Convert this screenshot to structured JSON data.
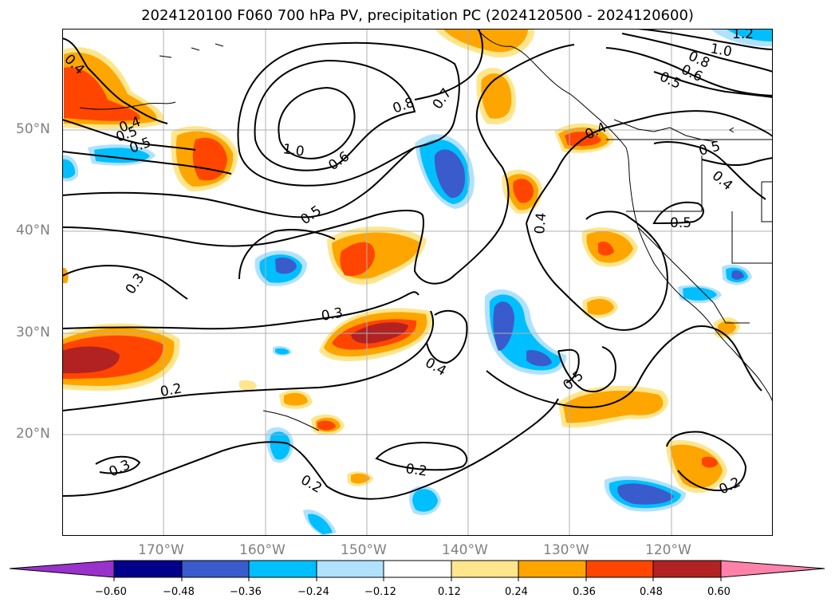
{
  "title": "2024120100 F060 700 hPa PV, precipitation PC (2024120500 - 2024120600)",
  "map": {
    "lat_labels": [
      "50°N",
      "40°N",
      "30°N",
      "20°N"
    ],
    "lon_labels": [
      "170°W",
      "160°W",
      "150°W",
      "140°W",
      "130°W",
      "120°W"
    ],
    "contour_labels": [
      "0.4",
      "0.5",
      "0.4",
      "0.5",
      "1.0",
      "0.8",
      "0.7",
      "0.6",
      "0.5",
      "0.4",
      "0.3",
      "0.3",
      "0.2",
      "0.3",
      "0.2",
      "0.2",
      "0.4",
      "0.5",
      "0.4",
      "0.5",
      "0.4",
      "0.5",
      "0.2",
      "1.2",
      "1.0",
      "0.8",
      "0.6",
      "0.5"
    ]
  },
  "colorbar": {
    "ticks": [
      "−0.60",
      "−0.48",
      "−0.36",
      "−0.24",
      "−0.12",
      "0.12",
      "0.24",
      "0.36",
      "0.48",
      "0.60"
    ],
    "colors": [
      "#9932cc",
      "#00008b",
      "#3a5bcc",
      "#00bfff",
      "#b0e2ff",
      "#ffffff",
      "#ffe68c",
      "#ffa500",
      "#ff4500",
      "#b22222",
      "#ff82ab"
    ]
  }
}
